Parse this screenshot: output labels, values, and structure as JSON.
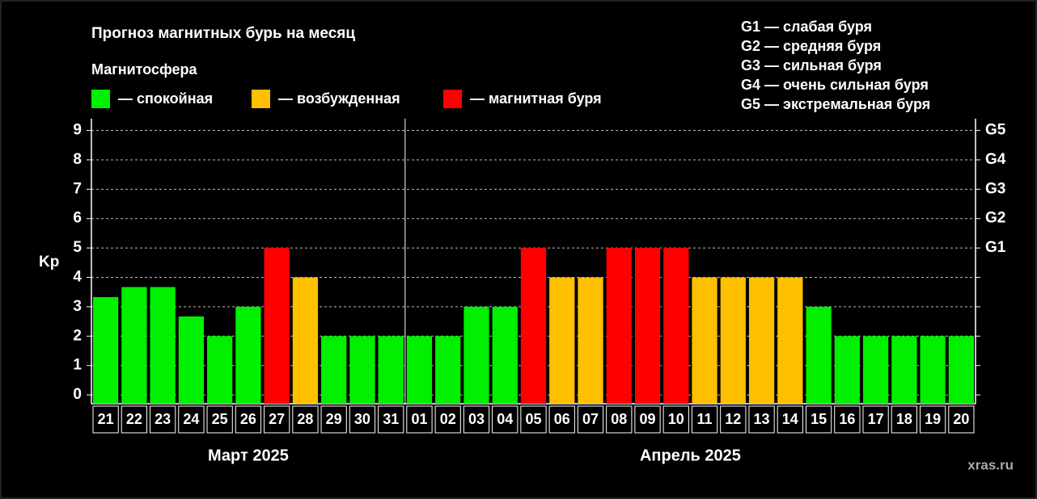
{
  "chart_data": {
    "type": "bar",
    "title": "Прогноз магнитных бурь на месяц",
    "subtitle": "Магнитосфера",
    "y_label": "Kp",
    "watermark": "xras.ru",
    "legend": [
      {
        "name": "— спокойная",
        "color": "#00f000"
      },
      {
        "name": "— возбужденная",
        "color": "#ffc000"
      },
      {
        "name": "— магнитная буря",
        "color": "#ff0000"
      }
    ],
    "scale_notes": [
      "G1 — слабая буря",
      "G2 — средняя буря",
      "G3 — сильная буря",
      "G4 — очень сильная буря",
      "G5 — экстремальная буря"
    ],
    "categories": [
      "21",
      "22",
      "23",
      "24",
      "25",
      "26",
      "27",
      "28",
      "29",
      "30",
      "31",
      "01",
      "02",
      "03",
      "04",
      "05",
      "06",
      "07",
      "08",
      "09",
      "10",
      "11",
      "12",
      "13",
      "14",
      "15",
      "16",
      "17",
      "18",
      "19",
      "20"
    ],
    "values": [
      3.33,
      3.67,
      3.67,
      2.67,
      2,
      3,
      5,
      4,
      2,
      2,
      2,
      2,
      2,
      3,
      3,
      5,
      4,
      4,
      5,
      5,
      5,
      4,
      4,
      4,
      4,
      3,
      2,
      2,
      2,
      2,
      2
    ],
    "colors": [
      "#00f000",
      "#00f000",
      "#00f000",
      "#00f000",
      "#00f000",
      "#00f000",
      "#ff0000",
      "#ffc000",
      "#00f000",
      "#00f000",
      "#00f000",
      "#00f000",
      "#00f000",
      "#00f000",
      "#00f000",
      "#ff0000",
      "#ffc000",
      "#ffc000",
      "#ff0000",
      "#ff0000",
      "#ff0000",
      "#ffc000",
      "#ffc000",
      "#ffc000",
      "#ffc000",
      "#00f000",
      "#00f000",
      "#00f000",
      "#00f000",
      "#00f000",
      "#00f000"
    ],
    "groups": [
      {
        "label": "Март 2025",
        "from": "21",
        "to": "31"
      },
      {
        "label": "Апрель 2025",
        "from": "01",
        "to": "20"
      }
    ],
    "ylim": [
      -0.3,
      9.4
    ],
    "yticks": [
      0,
      1,
      2,
      3,
      4,
      5,
      6,
      7,
      8,
      9
    ],
    "y2lim": [
      -0.3,
      9.4
    ],
    "y2ticks": [
      {
        "value": 5,
        "label": "G1"
      },
      {
        "value": 6,
        "label": "G2"
      },
      {
        "value": 7,
        "label": "G3"
      },
      {
        "value": 8,
        "label": "G4"
      },
      {
        "value": 9,
        "label": "G5"
      }
    ],
    "grid": true
  }
}
